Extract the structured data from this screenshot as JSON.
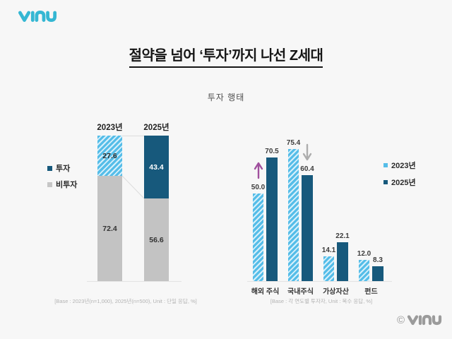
{
  "brand": {
    "logo_text": "vinu",
    "logo_color": "#35b7d3"
  },
  "header": {
    "title": "절약을 넘어 ‘투자’까지 나선 Z세대",
    "subtitle": "투자 행태"
  },
  "footer": {
    "copyright_symbol": "©",
    "logo_text": "vinu",
    "color": "#9b9b9b"
  },
  "colors": {
    "background": "#f7f7f7",
    "year2023_fill": "#55bde8",
    "year2023_hatch_light": "#d7f0fb",
    "year2025_fill": "#17597c",
    "noninvestor_fill": "#c3c3c3",
    "increase_arrow": "#a0509e",
    "decrease_arrow": "#adadad",
    "value_label": "#3c3c3c",
    "footnote_text": "#b3b3b3"
  },
  "chart_data": [
    {
      "type": "bar",
      "variant": "stacked-percent",
      "categories": [
        "2023년",
        "2025년"
      ],
      "series": [
        {
          "name": "투자",
          "values": [
            27.6,
            43.4
          ]
        },
        {
          "name": "비투자",
          "values": [
            72.4,
            56.6
          ]
        }
      ],
      "legend": [
        {
          "label": "투자",
          "color": "#17597c"
        },
        {
          "label": "비투자",
          "color": "#c6c6c6"
        }
      ],
      "legend_position": "left",
      "ylim": [
        0,
        100
      ],
      "grid": false,
      "footnote": "[Base : 2023년(n=1,000), 2025년(n=500), Unit : 단일 응답, %]"
    },
    {
      "type": "bar",
      "variant": "grouped",
      "categories": [
        "해외 주식",
        "국내주식",
        "가상자산",
        "펀드"
      ],
      "series": [
        {
          "name": "2023년",
          "values": [
            50.0,
            75.4,
            14.1,
            12.0
          ],
          "color": "#55bde8",
          "pattern": "diagonal-hatch"
        },
        {
          "name": "2025년",
          "values": [
            70.5,
            60.4,
            22.1,
            8.3
          ],
          "color": "#17597c",
          "pattern": "solid"
        }
      ],
      "legend": [
        {
          "label": "2023년",
          "color": "#55bde8"
        },
        {
          "label": "2025년",
          "color": "#17597c"
        }
      ],
      "legend_position": "right",
      "ylim": [
        0,
        83
      ],
      "grid": false,
      "annotations": [
        {
          "category": "해외 주식",
          "series": "2023년",
          "symbol": "up-arrow",
          "meaning": "increase",
          "color": "#a0509e"
        },
        {
          "category": "국내주식",
          "series": "2025년",
          "symbol": "down-arrow",
          "meaning": "decrease",
          "color": "#adadad"
        }
      ],
      "footnote": "[Base : 각 연도별 투자자, Unit : 복수 응답, %]"
    }
  ]
}
